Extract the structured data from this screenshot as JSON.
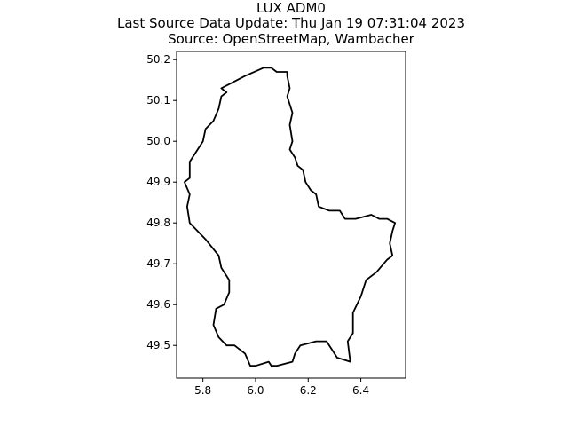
{
  "chart_data": {
    "type": "line",
    "title_lines": [
      "LUX ADM0",
      "Last Source Data Update: Thu Jan 19 07:31:04 2023",
      "Source: OpenStreetMap, Wambacher"
    ],
    "xlabel": "",
    "ylabel": "",
    "xlim": [
      5.7,
      6.57
    ],
    "ylim": [
      49.42,
      50.22
    ],
    "x_ticks": [
      5.8,
      6.0,
      6.2,
      6.4
    ],
    "x_tick_labels": [
      "5.8",
      "6.0",
      "6.2",
      "6.4"
    ],
    "y_ticks": [
      49.5,
      49.6,
      49.7,
      49.8,
      49.9,
      50.0,
      50.1,
      50.2
    ],
    "y_tick_labels": [
      "49.5",
      "49.6",
      "49.7",
      "49.8",
      "49.9",
      "50.0",
      "50.1",
      "50.2"
    ],
    "grid": false,
    "line_color": "#000000",
    "series": [
      {
        "x": [
          6.03,
          6.06,
          6.08,
          6.12,
          6.12,
          6.13,
          6.12,
          6.14,
          6.13,
          6.14,
          6.13,
          6.15,
          6.16,
          6.18,
          6.19,
          6.21,
          6.23,
          6.24,
          6.28,
          6.32,
          6.34,
          6.38,
          6.44,
          6.47,
          6.5,
          6.53,
          6.52,
          6.51,
          6.52,
          6.5,
          6.46,
          6.42,
          6.4,
          6.37,
          6.37,
          6.35,
          6.36,
          6.31,
          6.27,
          6.23,
          6.17,
          6.15,
          6.14,
          6.08,
          6.06,
          6.05,
          6.0,
          5.98,
          5.96,
          5.92,
          5.89,
          5.86,
          5.84,
          5.85,
          5.88,
          5.9,
          5.9,
          5.87,
          5.86,
          5.81,
          5.75,
          5.74,
          5.75,
          5.73,
          5.75,
          5.75,
          5.77,
          5.8,
          5.81,
          5.84,
          5.86,
          5.87,
          5.89,
          5.87,
          5.9,
          5.93,
          5.96,
          6.03
        ],
        "y": [
          50.18,
          50.18,
          50.17,
          50.17,
          50.16,
          50.13,
          50.11,
          50.07,
          50.04,
          50.0,
          49.98,
          49.96,
          49.94,
          49.93,
          49.9,
          49.88,
          49.87,
          49.84,
          49.83,
          49.83,
          49.81,
          49.81,
          49.82,
          49.81,
          49.81,
          49.8,
          49.78,
          49.75,
          49.72,
          49.71,
          49.68,
          49.66,
          49.62,
          49.58,
          49.53,
          49.51,
          49.46,
          49.47,
          49.51,
          49.51,
          49.5,
          49.48,
          49.46,
          49.45,
          49.45,
          49.46,
          49.45,
          49.45,
          49.48,
          49.5,
          49.5,
          49.52,
          49.55,
          49.59,
          49.6,
          49.63,
          49.66,
          49.69,
          49.72,
          49.76,
          49.8,
          49.84,
          49.87,
          49.9,
          49.91,
          49.95,
          49.97,
          50.0,
          50.03,
          50.05,
          50.08,
          50.11,
          50.12,
          50.13,
          50.14,
          50.15,
          50.16,
          50.18
        ]
      }
    ]
  }
}
